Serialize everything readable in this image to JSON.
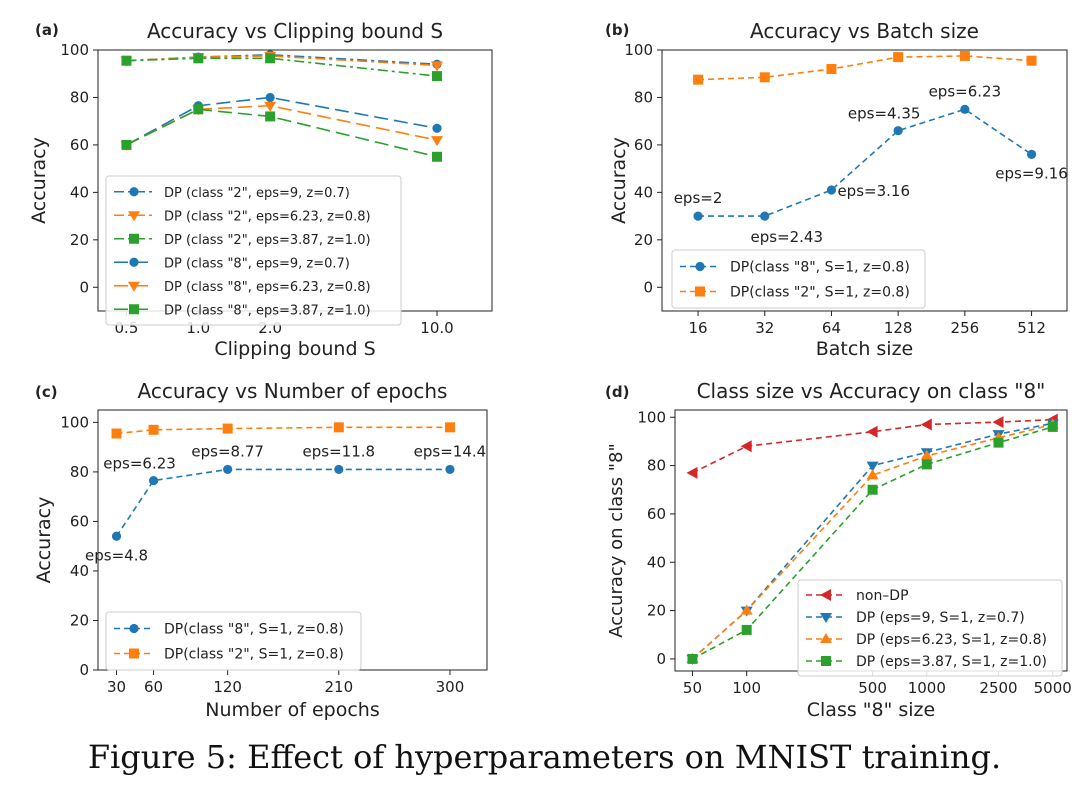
{
  "caption": "Figure 5: Effect of hyperparameters on MNIST training.",
  "colors": {
    "blue": "#1f77b4",
    "orange": "#ff7f0e",
    "green": "#2ca02c",
    "red": "#d62728"
  },
  "chart_data": [
    {
      "panel": "(a)",
      "type": "line",
      "title": "Accuracy vs Clipping bound S",
      "xlabel": "Clipping bound S",
      "ylabel": "Accuracy",
      "xscale": "log",
      "xlim": [
        0.38,
        17
      ],
      "ylim": [
        -10,
        100
      ],
      "xticks": [
        0.5,
        1.0,
        2.0,
        10.0
      ],
      "xticklabels": [
        "0.5",
        "1.0",
        "2.0",
        "10.0"
      ],
      "yticks": [
        0,
        20,
        40,
        60,
        80,
        100
      ],
      "legend": "lower-left",
      "series": [
        {
          "name": "DP (class \"2\", eps=9, z=0.7)",
          "color": "blue",
          "marker": "circle",
          "dash": "dashdot",
          "x": [
            0.5,
            1.0,
            2.0,
            10.0
          ],
          "y": [
            95.5,
            97,
            98,
            94
          ]
        },
        {
          "name": "DP (class \"2\", eps=6.23, z=0.8)",
          "color": "orange",
          "marker": "triangle-down",
          "dash": "dashdot",
          "x": [
            0.5,
            1.0,
            2.0,
            10.0
          ],
          "y": [
            95.5,
            97,
            97.5,
            93.5
          ]
        },
        {
          "name": "DP (class \"2\", eps=3.87, z=1.0)",
          "color": "green",
          "marker": "square",
          "dash": "dashdot",
          "x": [
            0.5,
            1.0,
            2.0,
            10.0
          ],
          "y": [
            95.5,
            96.5,
            96.5,
            89
          ]
        },
        {
          "name": "DP (class \"8\", eps=9, z=0.7)",
          "color": "blue",
          "marker": "circle",
          "dash": "longdash",
          "x": [
            0.5,
            1.0,
            2.0,
            10.0
          ],
          "y": [
            60,
            76.5,
            80,
            67
          ]
        },
        {
          "name": "DP (class \"8\", eps=6.23, z=0.8)",
          "color": "orange",
          "marker": "triangle-down",
          "dash": "longdash",
          "x": [
            0.5,
            1.0,
            2.0,
            10.0
          ],
          "y": [
            60,
            75,
            76.5,
            62
          ]
        },
        {
          "name": "DP (class \"8\", eps=3.87, z=1.0)",
          "color": "green",
          "marker": "square",
          "dash": "longdash",
          "x": [
            0.5,
            1.0,
            2.0,
            10.0
          ],
          "y": [
            60,
            75,
            72,
            55
          ]
        }
      ],
      "annotations": []
    },
    {
      "panel": "(b)",
      "type": "line",
      "title": "Accuracy vs Batch size",
      "xlabel": "Batch size",
      "ylabel": "Accuracy",
      "xscale": "log2",
      "xlim": [
        11,
        740
      ],
      "ylim": [
        -10,
        100
      ],
      "xticks": [
        16,
        32,
        64,
        128,
        256,
        512
      ],
      "xticklabels": [
        "16",
        "32",
        "64",
        "128",
        "256",
        "512"
      ],
      "yticks": [
        0,
        20,
        40,
        60,
        80,
        100
      ],
      "legend": "lower-left",
      "series": [
        {
          "name": "DP(class \"8\", S=1, z=0.8)",
          "color": "blue",
          "marker": "circle",
          "dash": "dashed",
          "x": [
            16,
            32,
            64,
            128,
            256,
            512
          ],
          "y": [
            30,
            30,
            41,
            66,
            75,
            56
          ]
        },
        {
          "name": "DP(class \"2\", S=1, z=0.8)",
          "color": "orange",
          "marker": "square",
          "dash": "dashed",
          "x": [
            16,
            32,
            64,
            128,
            256,
            512
          ],
          "y": [
            87.5,
            88.5,
            92,
            97,
            97.5,
            95.5
          ]
        }
      ],
      "annotations": [
        {
          "text": "eps=2",
          "x": 16,
          "y": 30,
          "pos": "above"
        },
        {
          "text": "eps=2.43",
          "x": 32,
          "y": 30,
          "pos": "below-right"
        },
        {
          "text": "eps=3.16",
          "x": 64,
          "y": 41,
          "pos": "right"
        },
        {
          "text": "eps=4.35",
          "x": 128,
          "y": 66,
          "pos": "above-left"
        },
        {
          "text": "eps=6.23",
          "x": 256,
          "y": 75,
          "pos": "above"
        },
        {
          "text": "eps=9.16",
          "x": 512,
          "y": 56,
          "pos": "below"
        }
      ]
    },
    {
      "panel": "(c)",
      "type": "line",
      "title": "Accuracy vs Number of epochs",
      "xlabel": "Number of epochs",
      "ylabel": "Accuracy",
      "xscale": "linear",
      "xlim": [
        15,
        330
      ],
      "ylim": [
        0,
        105
      ],
      "xticks": [
        30,
        60,
        120,
        210,
        300
      ],
      "xticklabels": [
        "30",
        "60",
        "120",
        "210",
        "300"
      ],
      "yticks": [
        0,
        20,
        40,
        60,
        80,
        100
      ],
      "legend": "lower-left",
      "series": [
        {
          "name": "DP(class \"8\", S=1, z=0.8)",
          "color": "blue",
          "marker": "circle",
          "dash": "dashed",
          "x": [
            30,
            60,
            120,
            210,
            300
          ],
          "y": [
            54,
            76.5,
            81,
            81,
            81
          ]
        },
        {
          "name": "DP(class \"2\", S=1, z=0.8)",
          "color": "orange",
          "marker": "square",
          "dash": "dashed",
          "x": [
            30,
            60,
            120,
            210,
            300
          ],
          "y": [
            95.5,
            97,
            97.5,
            98,
            98
          ]
        }
      ],
      "annotations": [
        {
          "text": "eps=4.8",
          "x": 30,
          "y": 54,
          "pos": "below"
        },
        {
          "text": "eps=6.23",
          "x": 60,
          "y": 76.5,
          "pos": "above-left"
        },
        {
          "text": "eps=8.77",
          "x": 120,
          "y": 81,
          "pos": "above"
        },
        {
          "text": "eps=11.8",
          "x": 210,
          "y": 81,
          "pos": "above"
        },
        {
          "text": "eps=14.4",
          "x": 300,
          "y": 81,
          "pos": "above"
        }
      ]
    },
    {
      "panel": "(d)",
      "type": "line",
      "title": "Class size vs Accuracy on class \"8\"",
      "xlabel": "Class \"8\" size",
      "ylabel": "Accuracy on class \"8\"",
      "xscale": "log",
      "xlim": [
        40,
        6000
      ],
      "ylim": [
        -5,
        103
      ],
      "xticks": [
        50,
        100,
        500,
        1000,
        2500,
        5000
      ],
      "xticklabels": [
        "50",
        "100",
        "500",
        "1000",
        "2500",
        "5000"
      ],
      "yticks": [
        0,
        20,
        40,
        60,
        80,
        100
      ],
      "legend": "lower-right",
      "series": [
        {
          "name": "non–DP",
          "color": "red",
          "marker": "triangle-left",
          "dash": "dashed",
          "x": [
            50,
            100,
            500,
            1000,
            2500,
            5000
          ],
          "y": [
            77,
            88,
            94,
            97,
            98,
            99
          ]
        },
        {
          "name": "DP (eps=9, S=1, z=0.7)",
          "color": "blue",
          "marker": "triangle-down",
          "dash": "dashed",
          "x": [
            50,
            100,
            500,
            1000,
            2500,
            5000
          ],
          "y": [
            0,
            20,
            80,
            85.5,
            93,
            97.5
          ]
        },
        {
          "name": "DP (eps=6.23, S=1, z=0.8)",
          "color": "orange",
          "marker": "triangle-up",
          "dash": "dashed",
          "x": [
            50,
            100,
            500,
            1000,
            2500,
            5000
          ],
          "y": [
            0,
            20,
            76,
            84,
            91.5,
            97
          ]
        },
        {
          "name": "DP (eps=3.87, S=1, z=1.0)",
          "color": "green",
          "marker": "square",
          "dash": "dashed",
          "x": [
            50,
            100,
            500,
            1000,
            2500,
            5000
          ],
          "y": [
            0,
            12,
            70,
            80.5,
            89.5,
            96
          ]
        }
      ],
      "annotations": []
    }
  ]
}
